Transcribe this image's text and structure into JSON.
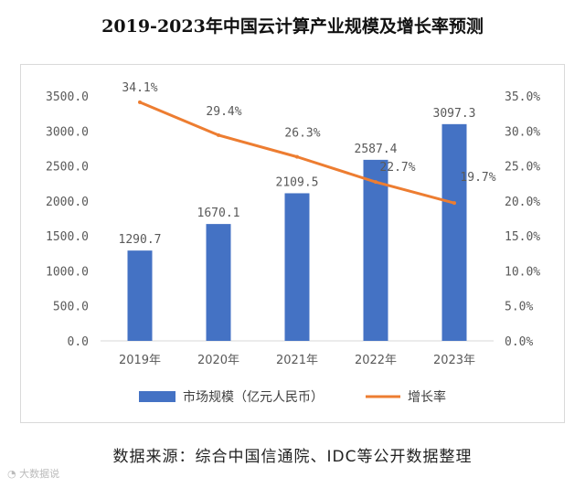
{
  "chart_data": {
    "type": "bar",
    "title": "2019-2023年中国云计算产业规模及增长率预测",
    "categories": [
      "2019年",
      "2020年",
      "2021年",
      "2022年",
      "2023年"
    ],
    "series": [
      {
        "name": "市场规模（亿元人民币）",
        "type": "bar",
        "axis": "left",
        "color": "#4472C4",
        "values": [
          1290.7,
          1670.1,
          2109.5,
          2587.4,
          3097.3
        ],
        "labels": [
          "1290.7",
          "1670.1",
          "2109.5",
          "2587.4",
          "3097.3"
        ]
      },
      {
        "name": "增长率",
        "type": "line",
        "axis": "right",
        "color": "#ED7D31",
        "values": [
          34.1,
          29.4,
          26.3,
          22.7,
          19.7
        ],
        "labels": [
          "34.1%",
          "29.4%",
          "26.3%",
          "22.7%",
          "19.7%"
        ]
      }
    ],
    "ylim_left": [
      0,
      3500
    ],
    "yticks_left": [
      "0.0",
      "500.0",
      "1000.0",
      "1500.0",
      "2000.0",
      "2500.0",
      "3000.0",
      "3500.0"
    ],
    "ylim_right": [
      0,
      35
    ],
    "yticks_right": [
      "0.0%",
      "5.0%",
      "10.0%",
      "15.0%",
      "20.0%",
      "25.0%",
      "30.0%",
      "35.0%"
    ],
    "grid": false,
    "legend": "bottom"
  },
  "source_text": "数据来源：综合中国信通院、IDC等公开数据整理",
  "watermark_text": "大数据说"
}
